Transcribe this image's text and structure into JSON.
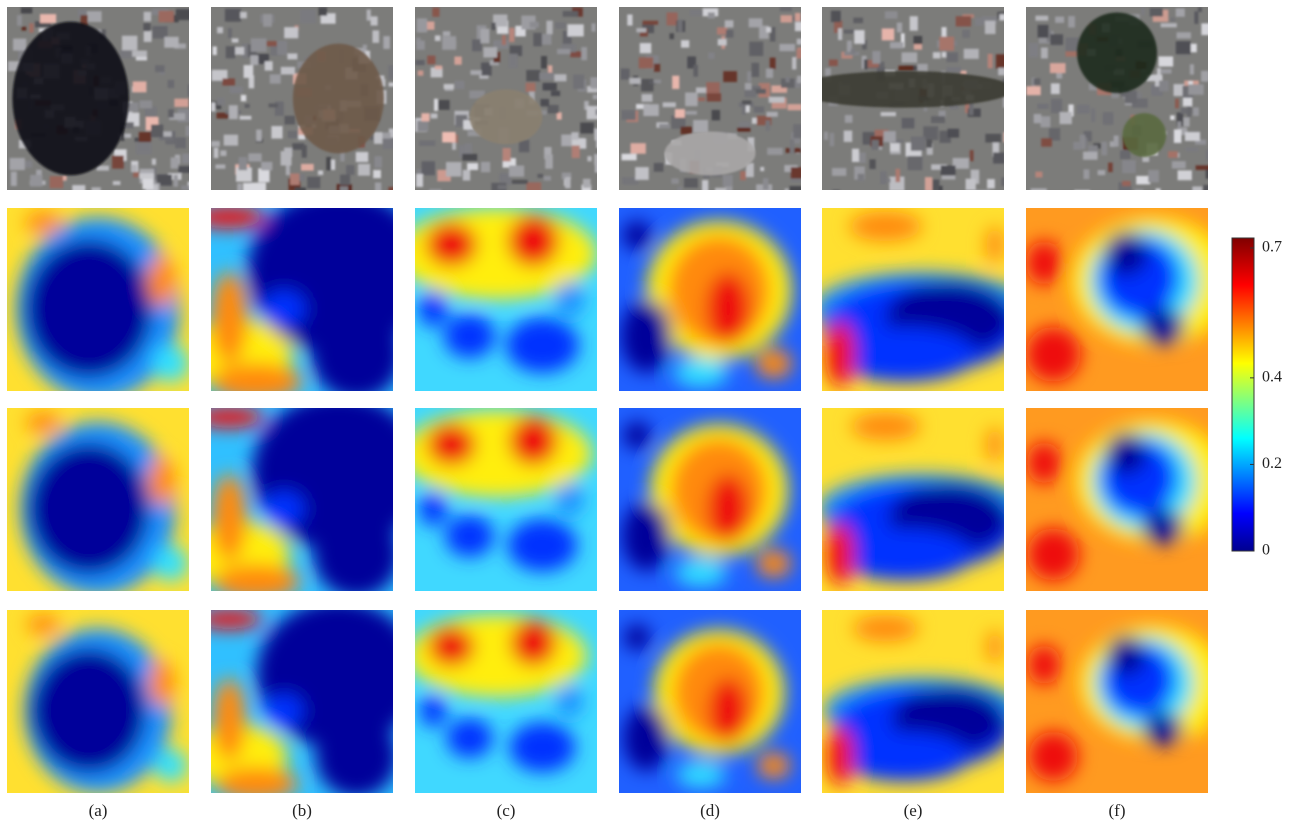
{
  "figure": {
    "column_labels": [
      "(a)",
      "(b)",
      "(c)",
      "(d)",
      "(e)",
      "(f)"
    ]
  },
  "colorbar": {
    "range": [
      0,
      0.7
    ],
    "ticks": [
      0,
      0.2,
      0.4,
      0.7
    ]
  }
}
